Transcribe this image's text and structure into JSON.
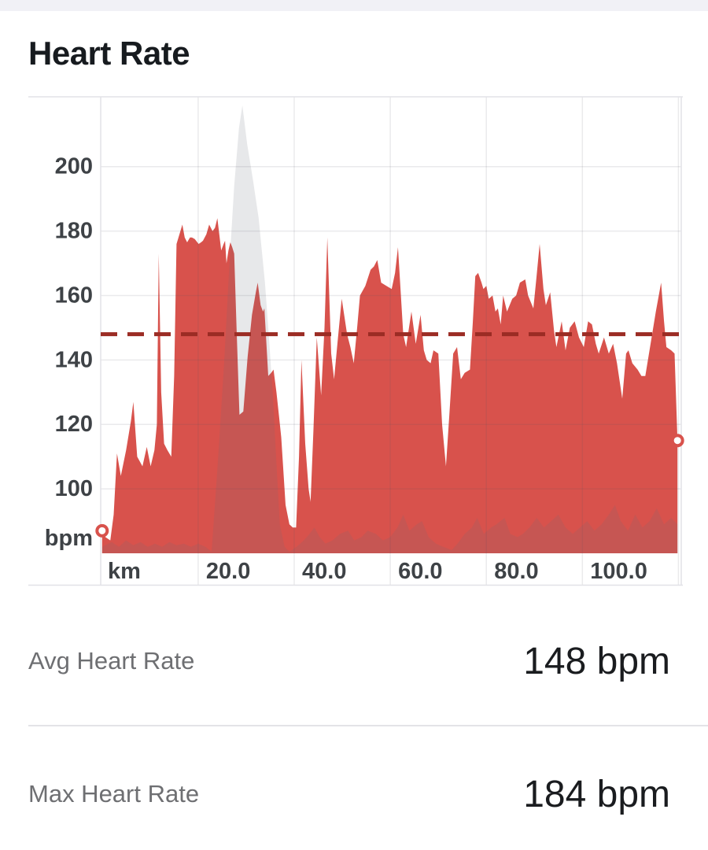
{
  "page": {
    "title": "Heart Rate"
  },
  "stats": [
    {
      "label": "Avg Heart Rate",
      "value": "148 bpm"
    },
    {
      "label": "Max Heart Rate",
      "value": "184 bpm"
    }
  ],
  "colors": {
    "heart_rate_fill": "#d8524c",
    "avg_line": "#9b2c24",
    "elevation_overlay": "rgba(104,110,122,0.16)",
    "gridline": "rgba(80,80,100,0.12)",
    "border": "#e2e2e7",
    "axis_text": "#3e4246",
    "marker_stroke": "#d8524c",
    "marker_fill": "#ffffff",
    "topbar": "#f1f1f6"
  },
  "chart_data": {
    "type": "area",
    "title": "Heart Rate",
    "xlabel": "km",
    "ylabel": "bpm",
    "x_range": [
      0,
      120.6
    ],
    "y_range": [
      80,
      222
    ],
    "y_ticks": [
      100,
      120,
      140,
      160,
      180,
      200
    ],
    "x_gridlines_km": [
      20,
      40,
      60,
      80,
      100,
      120
    ],
    "x_tick_labels": [
      "20.0",
      "40.0",
      "60.0",
      "80.0",
      "100.0"
    ],
    "x_unit_label": "km",
    "y_unit_label": "bpm",
    "legend": "none",
    "grid": true,
    "avg_line_bpm": 148,
    "start_marker": {
      "km": 0,
      "bpm": 87
    },
    "end_marker": {
      "km": 119.8,
      "bpm": 115
    },
    "series": [
      {
        "name": "heart_rate_bpm_vs_km",
        "points": [
          [
            0,
            87
          ],
          [
            0.7,
            85
          ],
          [
            1.7,
            84
          ],
          [
            2.4,
            92
          ],
          [
            3.1,
            111
          ],
          [
            3.9,
            104
          ],
          [
            5,
            112
          ],
          [
            6,
            121
          ],
          [
            6.5,
            127
          ],
          [
            7.3,
            110
          ],
          [
            8.4,
            107
          ],
          [
            9.3,
            113
          ],
          [
            10.1,
            107
          ],
          [
            10.9,
            112
          ],
          [
            11.4,
            120
          ],
          [
            11.8,
            173
          ],
          [
            12.3,
            130
          ],
          [
            12.9,
            114
          ],
          [
            13.6,
            112
          ],
          [
            14.4,
            110
          ],
          [
            15,
            135
          ],
          [
            15.5,
            176
          ],
          [
            16.1,
            179
          ],
          [
            16.7,
            182
          ],
          [
            17.2,
            178
          ],
          [
            17.7,
            176.5
          ],
          [
            18.3,
            178
          ],
          [
            18.7,
            178
          ],
          [
            19.3,
            177.5
          ],
          [
            20.1,
            176
          ],
          [
            20.6,
            176.5
          ],
          [
            21,
            177
          ],
          [
            21.7,
            179
          ],
          [
            22.3,
            182
          ],
          [
            23,
            180
          ],
          [
            23.5,
            181
          ],
          [
            24,
            184
          ],
          [
            24.8,
            174
          ],
          [
            25.3,
            176
          ],
          [
            25.6,
            177
          ],
          [
            25.9,
            170
          ],
          [
            26.3,
            174
          ],
          [
            26.7,
            176.5
          ],
          [
            27.1,
            175
          ],
          [
            27.5,
            173
          ],
          [
            28,
            150
          ],
          [
            28.6,
            123
          ],
          [
            29.4,
            124
          ],
          [
            30.3,
            141
          ],
          [
            31.2,
            154
          ],
          [
            32,
            161
          ],
          [
            32.4,
            164
          ],
          [
            33,
            157
          ],
          [
            33.5,
            155
          ],
          [
            33.8,
            156
          ],
          [
            34.6,
            135
          ],
          [
            35.2,
            136
          ],
          [
            35.7,
            137
          ],
          [
            36.3,
            130
          ],
          [
            36.8,
            123
          ],
          [
            37.3,
            116
          ],
          [
            38.2,
            95
          ],
          [
            39,
            89
          ],
          [
            39.7,
            88
          ],
          [
            40.4,
            88
          ],
          [
            41,
            110
          ],
          [
            41.5,
            140
          ],
          [
            42.3,
            114
          ],
          [
            43,
            100
          ],
          [
            43.4,
            96
          ],
          [
            44,
            118
          ],
          [
            44.7,
            147
          ],
          [
            45.6,
            129
          ],
          [
            46.3,
            150
          ],
          [
            46.9,
            178
          ],
          [
            47.7,
            142
          ],
          [
            48.3,
            134
          ],
          [
            49,
            145
          ],
          [
            49.9,
            159
          ],
          [
            51,
            148
          ],
          [
            51.7,
            144
          ],
          [
            52.4,
            139
          ],
          [
            53.1,
            150
          ],
          [
            53.7,
            160
          ],
          [
            54.8,
            163
          ],
          [
            55.9,
            168
          ],
          [
            56.6,
            169
          ],
          [
            57.3,
            171
          ],
          [
            58.1,
            164
          ],
          [
            59.2,
            163
          ],
          [
            60.3,
            162
          ],
          [
            61,
            167
          ],
          [
            61.6,
            175
          ],
          [
            62.7,
            148
          ],
          [
            63.3,
            144
          ],
          [
            64.4,
            155
          ],
          [
            65.3,
            145
          ],
          [
            66.3,
            154
          ],
          [
            67,
            143
          ],
          [
            67.6,
            140
          ],
          [
            68.4,
            139
          ],
          [
            69,
            143
          ],
          [
            70,
            142
          ],
          [
            70.8,
            120
          ],
          [
            71.6,
            107
          ],
          [
            72.3,
            123
          ],
          [
            73.1,
            142
          ],
          [
            73.9,
            144
          ],
          [
            74.7,
            134
          ],
          [
            75.5,
            136
          ],
          [
            76.6,
            137
          ],
          [
            77.2,
            152
          ],
          [
            77.7,
            166
          ],
          [
            78.3,
            167
          ],
          [
            79,
            164
          ],
          [
            79.4,
            162
          ],
          [
            80,
            163
          ],
          [
            80.5,
            159
          ],
          [
            81.3,
            160
          ],
          [
            81.9,
            155
          ],
          [
            82.4,
            156
          ],
          [
            83,
            151
          ],
          [
            83.5,
            160
          ],
          [
            84.3,
            155
          ],
          [
            85.4,
            159
          ],
          [
            86.2,
            160
          ],
          [
            87,
            164
          ],
          [
            88.1,
            165
          ],
          [
            88.7,
            160
          ],
          [
            89.8,
            156
          ],
          [
            90.4,
            165
          ],
          [
            91.1,
            176
          ],
          [
            91.9,
            162
          ],
          [
            92.4,
            157
          ],
          [
            93.3,
            161
          ],
          [
            94.1,
            149
          ],
          [
            94.6,
            144
          ],
          [
            95.7,
            152
          ],
          [
            96.5,
            143
          ],
          [
            97.4,
            150
          ],
          [
            98.4,
            152
          ],
          [
            99.3,
            147
          ],
          [
            100.3,
            144
          ],
          [
            101.2,
            152
          ],
          [
            102,
            151
          ],
          [
            102.8,
            145
          ],
          [
            103.4,
            142
          ],
          [
            104.5,
            147
          ],
          [
            105.5,
            142
          ],
          [
            106.4,
            145
          ],
          [
            107.2,
            139
          ],
          [
            108.3,
            128
          ],
          [
            109.1,
            142
          ],
          [
            109.6,
            143
          ],
          [
            110.4,
            139
          ],
          [
            111.5,
            137
          ],
          [
            112.3,
            135
          ],
          [
            113.1,
            135
          ],
          [
            114.2,
            145
          ],
          [
            115.3,
            155
          ],
          [
            116.4,
            164
          ],
          [
            117,
            152
          ],
          [
            117.5,
            144
          ],
          [
            118.5,
            143
          ],
          [
            119.2,
            142
          ],
          [
            119.8,
            115
          ]
        ]
      },
      {
        "name": "elevation_profile_overlay",
        "points": [
          [
            0,
            82
          ],
          [
            2,
            83.5
          ],
          [
            3.5,
            82
          ],
          [
            5,
            84
          ],
          [
            6.5,
            82.5
          ],
          [
            8,
            83.5
          ],
          [
            9.5,
            82
          ],
          [
            11,
            83
          ],
          [
            12.5,
            82
          ],
          [
            14,
            83.5
          ],
          [
            15.5,
            82.5
          ],
          [
            17,
            83
          ],
          [
            18.5,
            82
          ],
          [
            20,
            83
          ],
          [
            21.5,
            82
          ],
          [
            22.8,
            80.5
          ],
          [
            24,
            106
          ],
          [
            25.4,
            139
          ],
          [
            26.4,
            167
          ],
          [
            27.5,
            194
          ],
          [
            28.5,
            212
          ],
          [
            29.2,
            219
          ],
          [
            30.2,
            207
          ],
          [
            31.4,
            196
          ],
          [
            32.6,
            184
          ],
          [
            33.9,
            164
          ],
          [
            34.7,
            148
          ],
          [
            35.6,
            128
          ],
          [
            36.3,
            108
          ],
          [
            37,
            89
          ],
          [
            38,
            82
          ],
          [
            39,
            80.5
          ],
          [
            40.5,
            82
          ],
          [
            42,
            84
          ],
          [
            43.2,
            86
          ],
          [
            44.2,
            88
          ],
          [
            45.3,
            85
          ],
          [
            46.5,
            83
          ],
          [
            48,
            84
          ],
          [
            49.5,
            86
          ],
          [
            51.2,
            87
          ],
          [
            52.5,
            84
          ],
          [
            54,
            85
          ],
          [
            55.3,
            87
          ],
          [
            57,
            86
          ],
          [
            58.5,
            84
          ],
          [
            60,
            85
          ],
          [
            61.5,
            88
          ],
          [
            62.7,
            92
          ],
          [
            64,
            87
          ],
          [
            65.5,
            89
          ],
          [
            66.6,
            90
          ],
          [
            68,
            85
          ],
          [
            69.5,
            83
          ],
          [
            71,
            82
          ],
          [
            72.8,
            81
          ],
          [
            74,
            83
          ],
          [
            75.5,
            86
          ],
          [
            77,
            88
          ],
          [
            78.1,
            91
          ],
          [
            79.5,
            86
          ],
          [
            81,
            88
          ],
          [
            82.1,
            89
          ],
          [
            83.8,
            91
          ],
          [
            85,
            86
          ],
          [
            86.5,
            85
          ],
          [
            87.6,
            86
          ],
          [
            89,
            88
          ],
          [
            90.5,
            91
          ],
          [
            92,
            88
          ],
          [
            93.5,
            90
          ],
          [
            95,
            92
          ],
          [
            96.5,
            88
          ],
          [
            98,
            86
          ],
          [
            99.5,
            88
          ],
          [
            101,
            90
          ],
          [
            102.5,
            87
          ],
          [
            104,
            89
          ],
          [
            105.5,
            92
          ],
          [
            106.8,
            95
          ],
          [
            108,
            90
          ],
          [
            109.5,
            87
          ],
          [
            111,
            92
          ],
          [
            112.5,
            88
          ],
          [
            114,
            90
          ],
          [
            115.5,
            94
          ],
          [
            117,
            89
          ],
          [
            118.5,
            91
          ],
          [
            119.8,
            89
          ]
        ]
      }
    ]
  }
}
